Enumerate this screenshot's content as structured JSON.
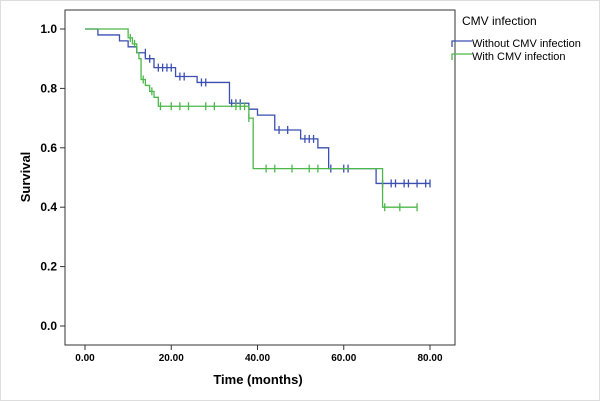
{
  "chart_data": {
    "type": "line",
    "subtype": "kaplan-meier",
    "title": "",
    "xlabel": "Time (months)",
    "ylabel": "Survival",
    "xlim": [
      -5,
      85
    ],
    "ylim": [
      -0.06,
      1.06
    ],
    "xticks": [
      0,
      20,
      40,
      60,
      80
    ],
    "xtick_labels": [
      "0.00",
      "20.00",
      "40.00",
      "60.00",
      "80.00"
    ],
    "yticks": [
      0,
      0.2,
      0.4,
      0.6,
      0.8,
      1.0
    ],
    "ytick_labels": [
      "0.0",
      "0.2",
      "0.4",
      "0.6",
      "0.8",
      "1.0"
    ],
    "grid": false,
    "legend": {
      "title": "CMV infection",
      "placement": "outside-top-right"
    },
    "series": [
      {
        "name": "Without CMV infection",
        "color": "#3a4fb0",
        "steps": [
          [
            0,
            1.0
          ],
          [
            3,
            0.98
          ],
          [
            8,
            0.96
          ],
          [
            10,
            0.94
          ],
          [
            12,
            0.92
          ],
          [
            14,
            0.9
          ],
          [
            16,
            0.87
          ],
          [
            21,
            0.84
          ],
          [
            26,
            0.82
          ],
          [
            33.5,
            0.75
          ],
          [
            38,
            0.73
          ],
          [
            40,
            0.71
          ],
          [
            44,
            0.66
          ],
          [
            50,
            0.63
          ],
          [
            54,
            0.6
          ],
          [
            56.5,
            0.53
          ],
          [
            67.5,
            0.48
          ]
        ],
        "end": 80,
        "censored": [
          [
            14,
            0.92
          ],
          [
            15,
            0.9
          ],
          [
            17,
            0.87
          ],
          [
            18,
            0.87
          ],
          [
            19,
            0.87
          ],
          [
            20,
            0.87
          ],
          [
            22,
            0.84
          ],
          [
            23,
            0.84
          ],
          [
            27,
            0.82
          ],
          [
            28,
            0.82
          ],
          [
            34,
            0.75
          ],
          [
            35,
            0.75
          ],
          [
            36,
            0.75
          ],
          [
            45,
            0.66
          ],
          [
            47,
            0.66
          ],
          [
            51,
            0.63
          ],
          [
            52,
            0.63
          ],
          [
            53,
            0.63
          ],
          [
            57,
            0.53
          ],
          [
            60,
            0.53
          ],
          [
            61,
            0.53
          ],
          [
            69,
            0.48
          ],
          [
            71,
            0.48
          ],
          [
            72,
            0.48
          ],
          [
            74,
            0.48
          ],
          [
            75,
            0.48
          ],
          [
            77,
            0.48
          ],
          [
            79,
            0.48
          ],
          [
            80,
            0.48
          ]
        ]
      },
      {
        "name": "With CMV infection",
        "color": "#4cb84a",
        "steps": [
          [
            0,
            1.0
          ],
          [
            10,
            0.97
          ],
          [
            11,
            0.95
          ],
          [
            12,
            0.92
          ],
          [
            12.5,
            0.9
          ],
          [
            13,
            0.83
          ],
          [
            14,
            0.81
          ],
          [
            15,
            0.79
          ],
          [
            16,
            0.77
          ],
          [
            17,
            0.74
          ],
          [
            38,
            0.7
          ],
          [
            39,
            0.53
          ],
          [
            69,
            0.4
          ]
        ],
        "end": 77,
        "censored": [
          [
            10.5,
            0.97
          ],
          [
            11.5,
            0.95
          ],
          [
            13.5,
            0.83
          ],
          [
            15.5,
            0.79
          ],
          [
            17.5,
            0.74
          ],
          [
            20,
            0.74
          ],
          [
            22,
            0.74
          ],
          [
            24,
            0.74
          ],
          [
            28,
            0.74
          ],
          [
            30,
            0.74
          ],
          [
            35,
            0.74
          ],
          [
            36,
            0.74
          ],
          [
            37,
            0.74
          ],
          [
            38,
            0.7
          ],
          [
            42,
            0.53
          ],
          [
            44,
            0.53
          ],
          [
            48,
            0.53
          ],
          [
            52,
            0.53
          ],
          [
            54,
            0.53
          ],
          [
            69.5,
            0.4
          ],
          [
            73,
            0.4
          ],
          [
            77,
            0.4
          ]
        ]
      }
    ]
  }
}
